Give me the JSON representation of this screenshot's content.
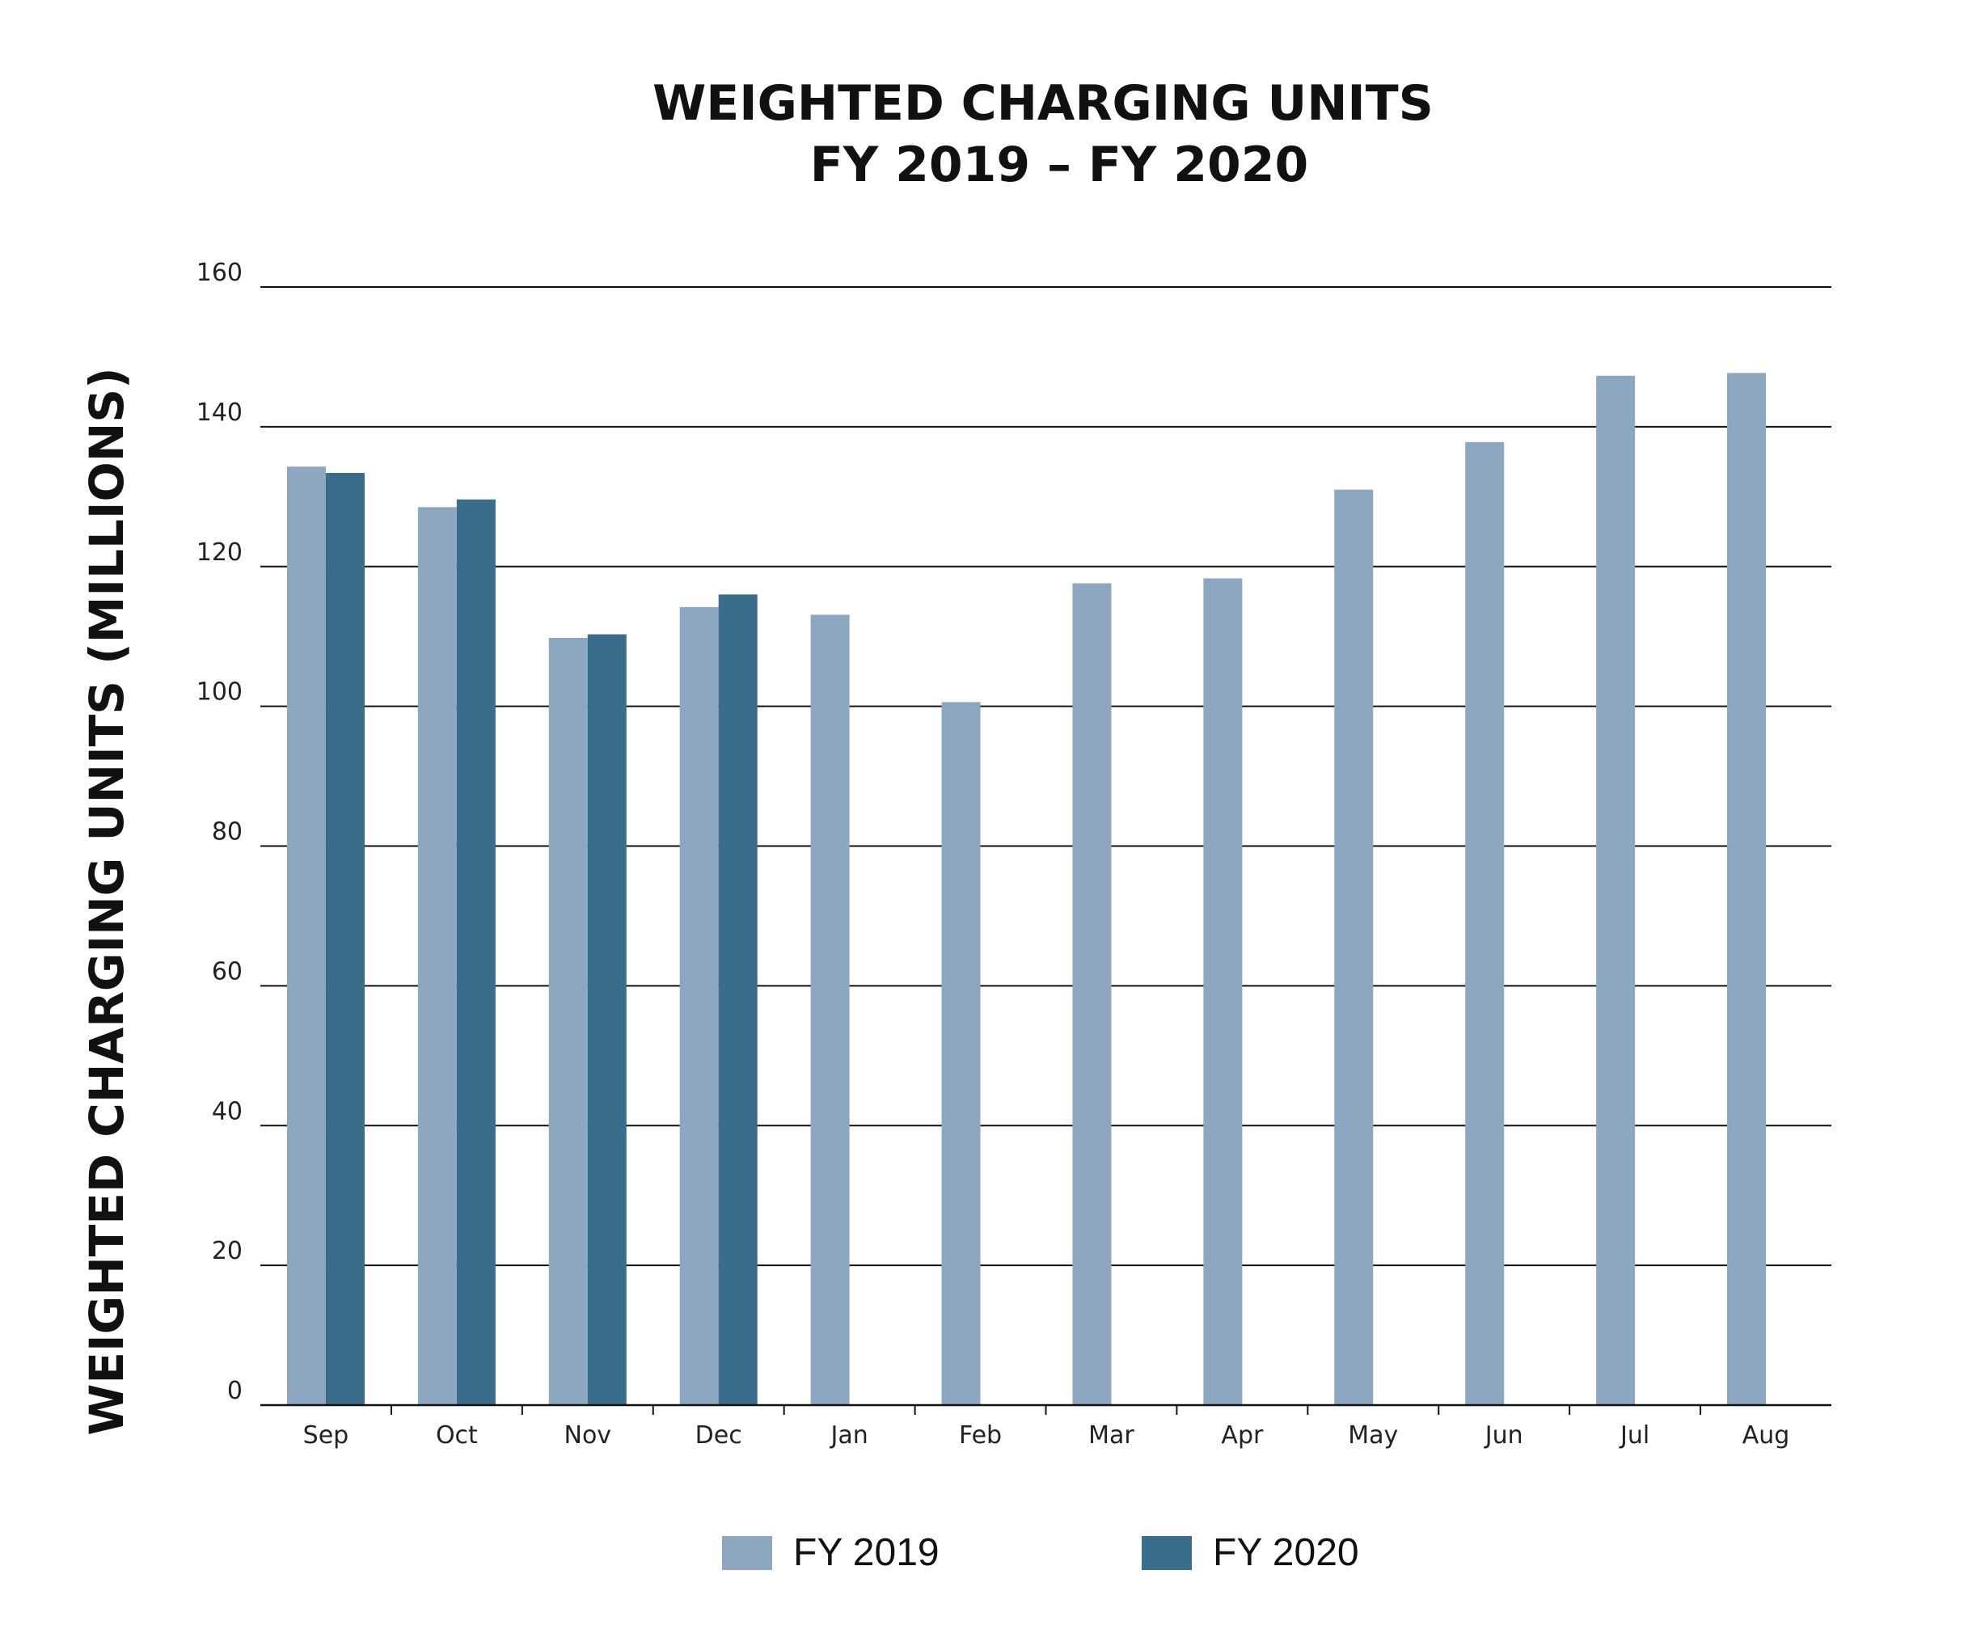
{
  "chart_data": {
    "type": "bar",
    "title": "WEIGHTED CHARGING UNITS",
    "subtitle": "FY 2019 – FY 2020",
    "xlabel": "",
    "ylabel": "WEIGHTED CHARGING UNITS (MILLIONS)",
    "ylim": [
      0,
      160
    ],
    "yticks": [
      0,
      20,
      40,
      60,
      80,
      100,
      120,
      140,
      160
    ],
    "grid": true,
    "legend_position": "bottom",
    "categories": [
      "Sep",
      "Oct",
      "Nov",
      "Dec",
      "Jan",
      "Feb",
      "Mar",
      "Apr",
      "May",
      "Jun",
      "Jul",
      "Aug"
    ],
    "series": [
      {
        "name": "FY 2019",
        "color": "#8ca7bf",
        "values": [
          134.3,
          128.5,
          109.8,
          114.2,
          113.1,
          100.6,
          117.6,
          118.3,
          131.0,
          137.8,
          147.3,
          147.7
        ]
      },
      {
        "name": "FY 2020",
        "color": "#3a6d8c",
        "values": [
          133.4,
          129.6,
          110.3,
          116.0,
          null,
          null,
          null,
          null,
          null,
          null,
          null,
          null
        ]
      }
    ]
  }
}
